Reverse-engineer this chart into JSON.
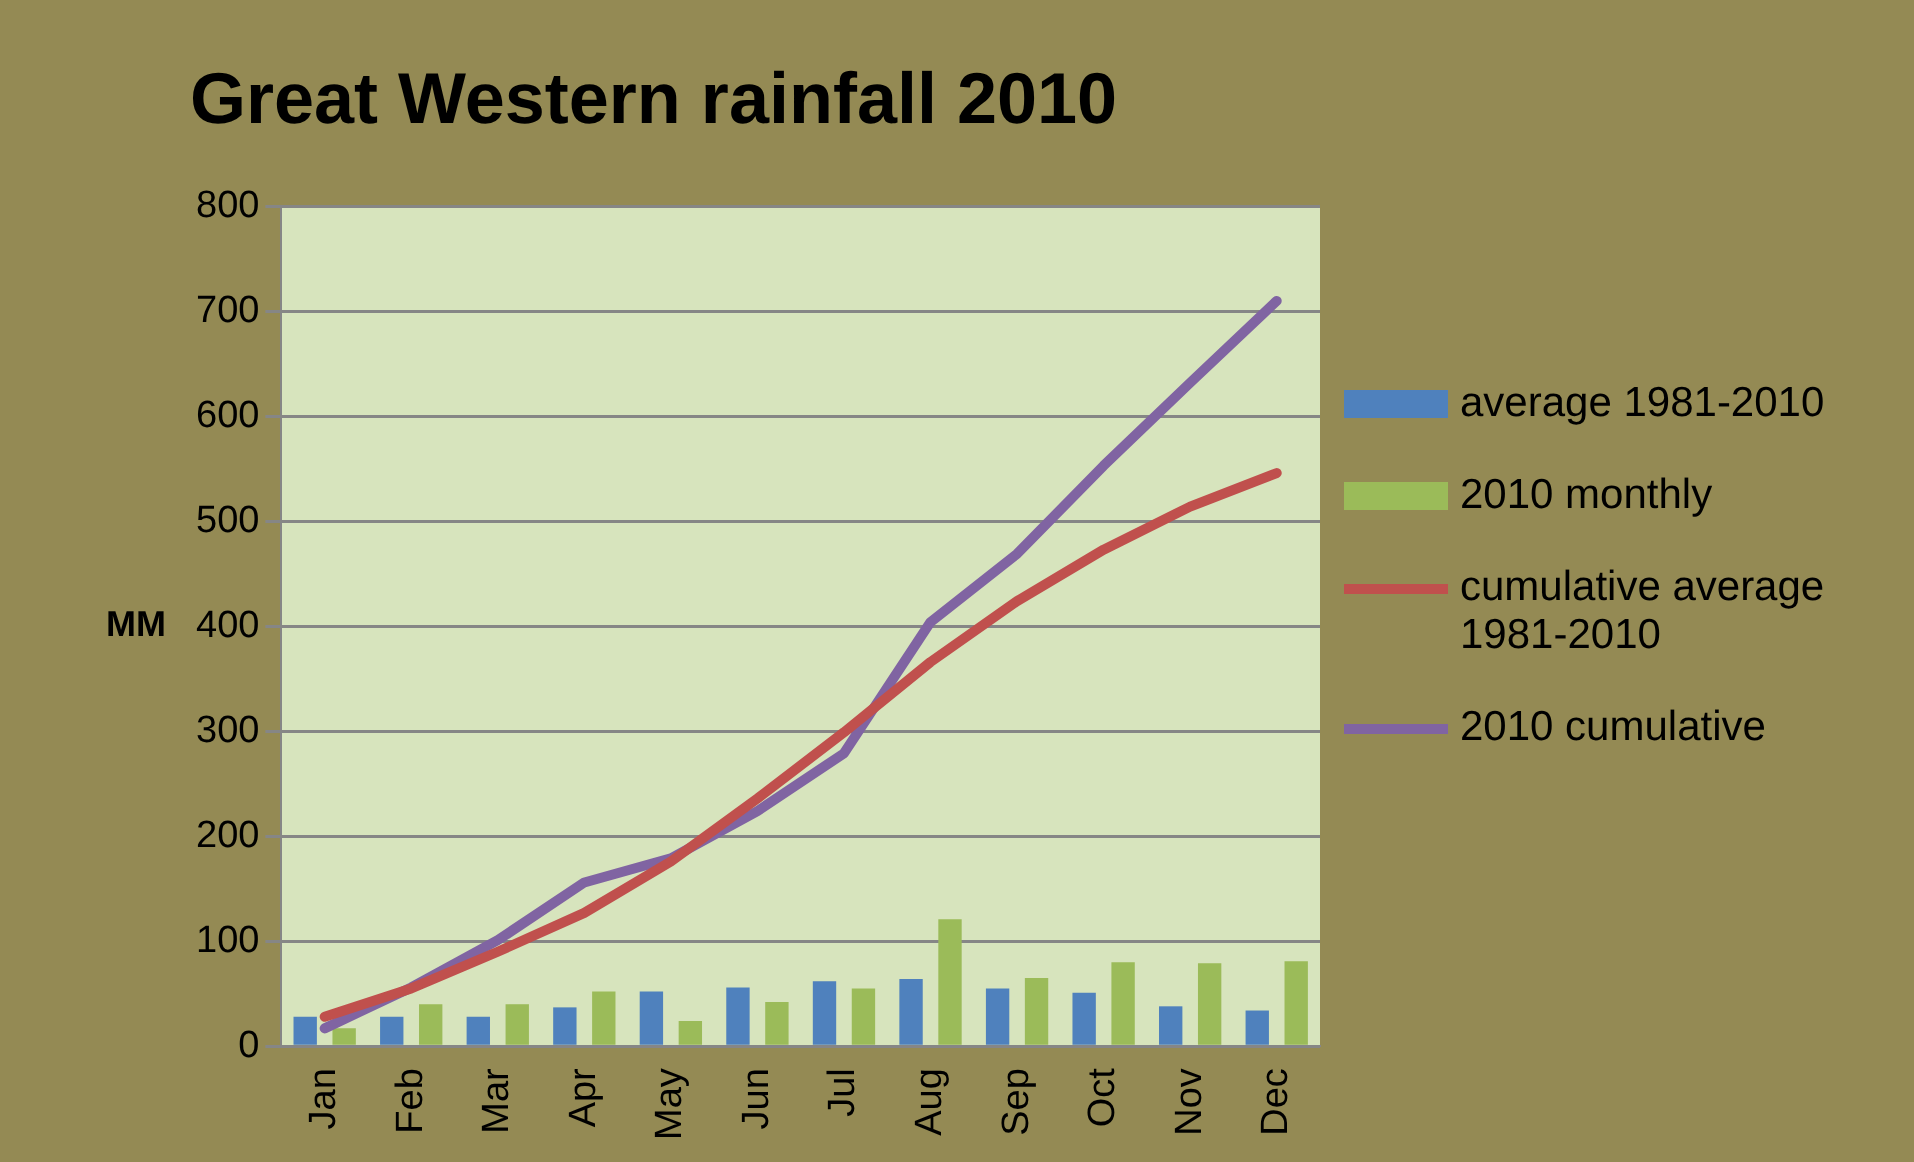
{
  "chart_data": {
    "type": "bar",
    "title": "Great Western rainfall 2010",
    "ylabel": "MM",
    "categories": [
      "Jan",
      "Feb",
      "Mar",
      "Apr",
      "May",
      "Jun",
      "Jul",
      "Aug",
      "Sep",
      "Oct",
      "Nov",
      "Dec"
    ],
    "series": [
      {
        "name": "average 1981-2010",
        "color": "#4f81bd",
        "values": [
          28,
          28,
          28,
          37,
          52,
          56,
          62,
          64,
          55,
          51,
          38,
          34
        ]
      },
      {
        "name": "2010 monthly",
        "color": "#9bbb59",
        "values": [
          17,
          40,
          40,
          52,
          24,
          42,
          55,
          121,
          65,
          80,
          79,
          81
        ]
      },
      {
        "name": "cumulative average 1981-2010",
        "type": "line",
        "color": "#c0504d",
        "values": [
          28,
          55,
          90,
          127,
          176,
          236,
          299,
          366,
          424,
          473,
          514,
          546
        ]
      },
      {
        "name": "2010 cumulative",
        "type": "line",
        "color": "#8064a2",
        "values": [
          17,
          56,
          101,
          156,
          179,
          224,
          279,
          404,
          469,
          553,
          632,
          710
        ]
      }
    ],
    "ylim": [
      0,
      800
    ],
    "yticks": [
      0,
      100,
      200,
      300,
      400,
      500,
      600,
      700,
      800
    ],
    "grid": "y",
    "legend": "right",
    "marker": "none",
    "line_style": "solid"
  }
}
